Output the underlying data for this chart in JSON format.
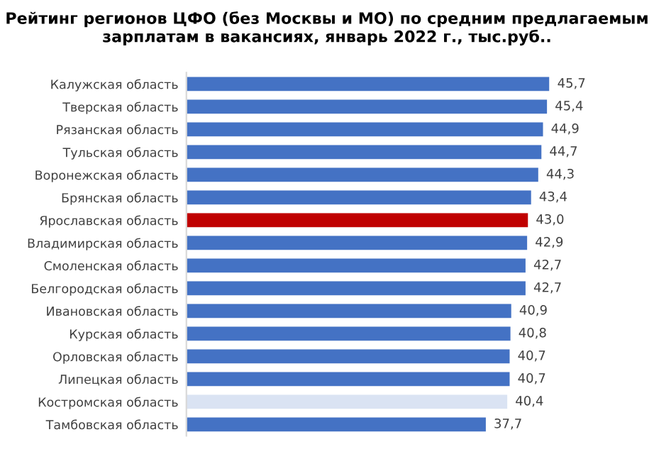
{
  "chart_data": {
    "type": "bar",
    "orientation": "horizontal",
    "title": "Рейтинг регионов ЦФО (без Москвы и МО) по средним предлагаемым зарплатам в вакансиях, январь 2022 г., тыс.руб..",
    "categories": [
      "Калужская область",
      "Тверская область",
      "Рязанская область",
      "Тульская область",
      "Воронежская область",
      "Брянская область",
      "Ярославская область",
      "Владимирская область",
      "Смоленская область",
      "Белгородская область",
      "Ивановская область",
      "Курская область",
      "Орловская область",
      "Липецкая область",
      "Костромская область",
      "Тамбовская область"
    ],
    "values": [
      45.7,
      45.4,
      44.9,
      44.7,
      44.3,
      43.4,
      43.0,
      42.9,
      42.7,
      42.7,
      40.9,
      40.8,
      40.7,
      40.7,
      40.4,
      37.7
    ],
    "value_labels": [
      "45,7",
      "45,4",
      "44,9",
      "44,7",
      "44,3",
      "43,4",
      "43,0",
      "42,9",
      "42,7",
      "42,7",
      "40,9",
      "40,8",
      "40,7",
      "40,7",
      "40,4",
      "37,7"
    ],
    "colors": [
      "#4472c4",
      "#4472c4",
      "#4472c4",
      "#4472c4",
      "#4472c4",
      "#4472c4",
      "#c00000",
      "#4472c4",
      "#4472c4",
      "#4472c4",
      "#4472c4",
      "#4472c4",
      "#4472c4",
      "#4472c4",
      "#dae3f3",
      "#4472c4"
    ],
    "grid": false,
    "legend": false
  }
}
